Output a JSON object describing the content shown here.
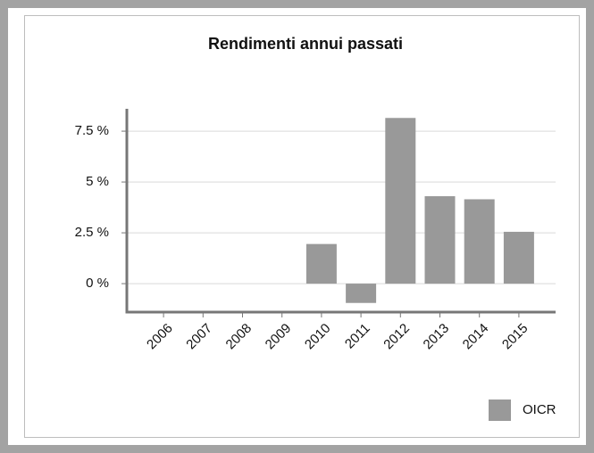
{
  "chart_data": {
    "type": "bar",
    "title": "Rendimenti annui passati",
    "categories": [
      "2006",
      "2007",
      "2008",
      "2009",
      "2010",
      "2011",
      "2012",
      "2013",
      "2014",
      "2015"
    ],
    "series": [
      {
        "name": "OICR",
        "color": "#999999",
        "values": [
          null,
          null,
          null,
          null,
          1.95,
          -0.95,
          8.15,
          4.3,
          4.15,
          2.55
        ]
      }
    ],
    "ylim": [
      -1.4,
      8.6
    ],
    "yticks": [
      {
        "value": 0,
        "label": "0 %"
      },
      {
        "value": 2.5,
        "label": "2.5 %"
      },
      {
        "value": 5,
        "label": "5 %"
      },
      {
        "value": 7.5,
        "label": "7.5 %"
      }
    ],
    "grid": true,
    "legend": "bottom-right"
  }
}
